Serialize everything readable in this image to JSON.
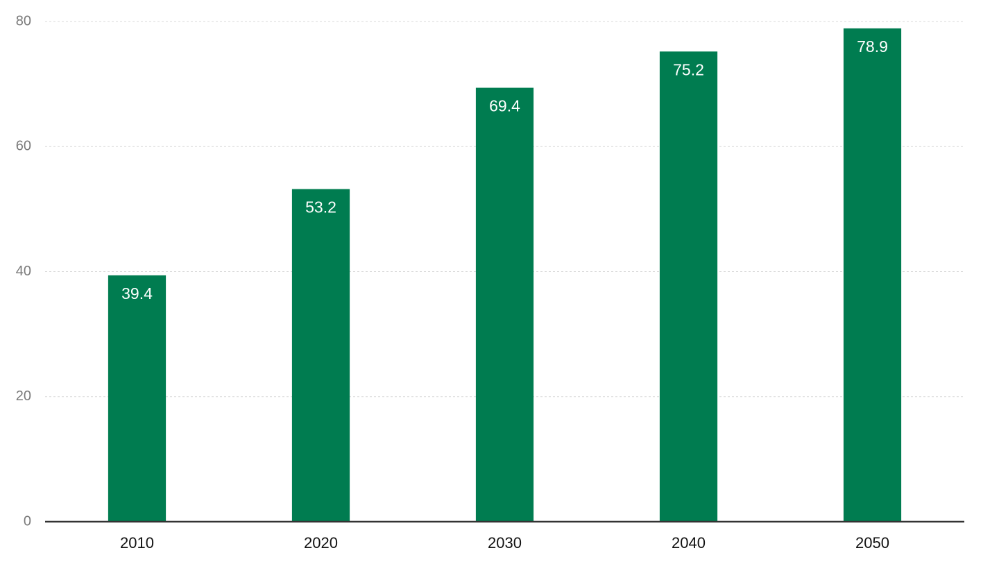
{
  "chart_data": {
    "type": "bar",
    "categories": [
      "2010",
      "2020",
      "2030",
      "2040",
      "2050"
    ],
    "values": [
      39.4,
      53.2,
      69.4,
      75.2,
      78.9
    ],
    "color": "#007c50",
    "ylim": [
      0,
      80
    ],
    "yticks": [
      0,
      20,
      40,
      60,
      80
    ],
    "grid": true
  }
}
